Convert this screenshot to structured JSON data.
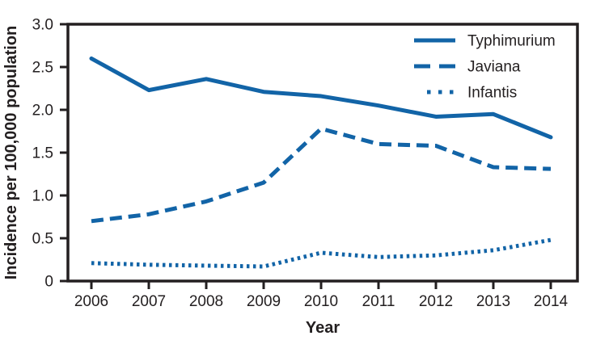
{
  "figure": {
    "background": "#ffffff",
    "text_color": "#231f20"
  },
  "chart_data": {
    "type": "line",
    "title": "",
    "xlabel": "Year",
    "ylabel": "Incidence per 100,000 population",
    "x": [
      2006,
      2007,
      2008,
      2009,
      2010,
      2011,
      2012,
      2013,
      2014
    ],
    "x_tick_labels": [
      "2006",
      "2007",
      "2008",
      "2009",
      "2010",
      "2011",
      "2012",
      "2013",
      "2014"
    ],
    "series": [
      {
        "name": "Typhimurium",
        "style": "solid",
        "values": [
          2.6,
          2.23,
          2.36,
          2.21,
          2.16,
          2.05,
          1.92,
          1.95,
          1.68
        ]
      },
      {
        "name": "Javiana",
        "style": "dashed",
        "values": [
          0.7,
          0.78,
          0.93,
          1.15,
          1.78,
          1.6,
          1.58,
          1.33,
          1.31
        ]
      },
      {
        "name": "Infantis",
        "style": "dotted",
        "values": [
          0.21,
          0.19,
          0.18,
          0.17,
          0.33,
          0.28,
          0.3,
          0.36,
          0.48
        ]
      }
    ],
    "ylim": [
      0,
      3.0
    ],
    "y_ticks": [
      0,
      0.5,
      1.0,
      1.5,
      2.0,
      2.5,
      3.0
    ],
    "y_tick_labels": [
      "0",
      "0.5",
      "1.0",
      "1.5",
      "2.0",
      "2.5",
      "3.0"
    ],
    "grid": false,
    "legend_position": "top-right",
    "line_color": "#1264a7",
    "axis_color": "#231f20"
  }
}
